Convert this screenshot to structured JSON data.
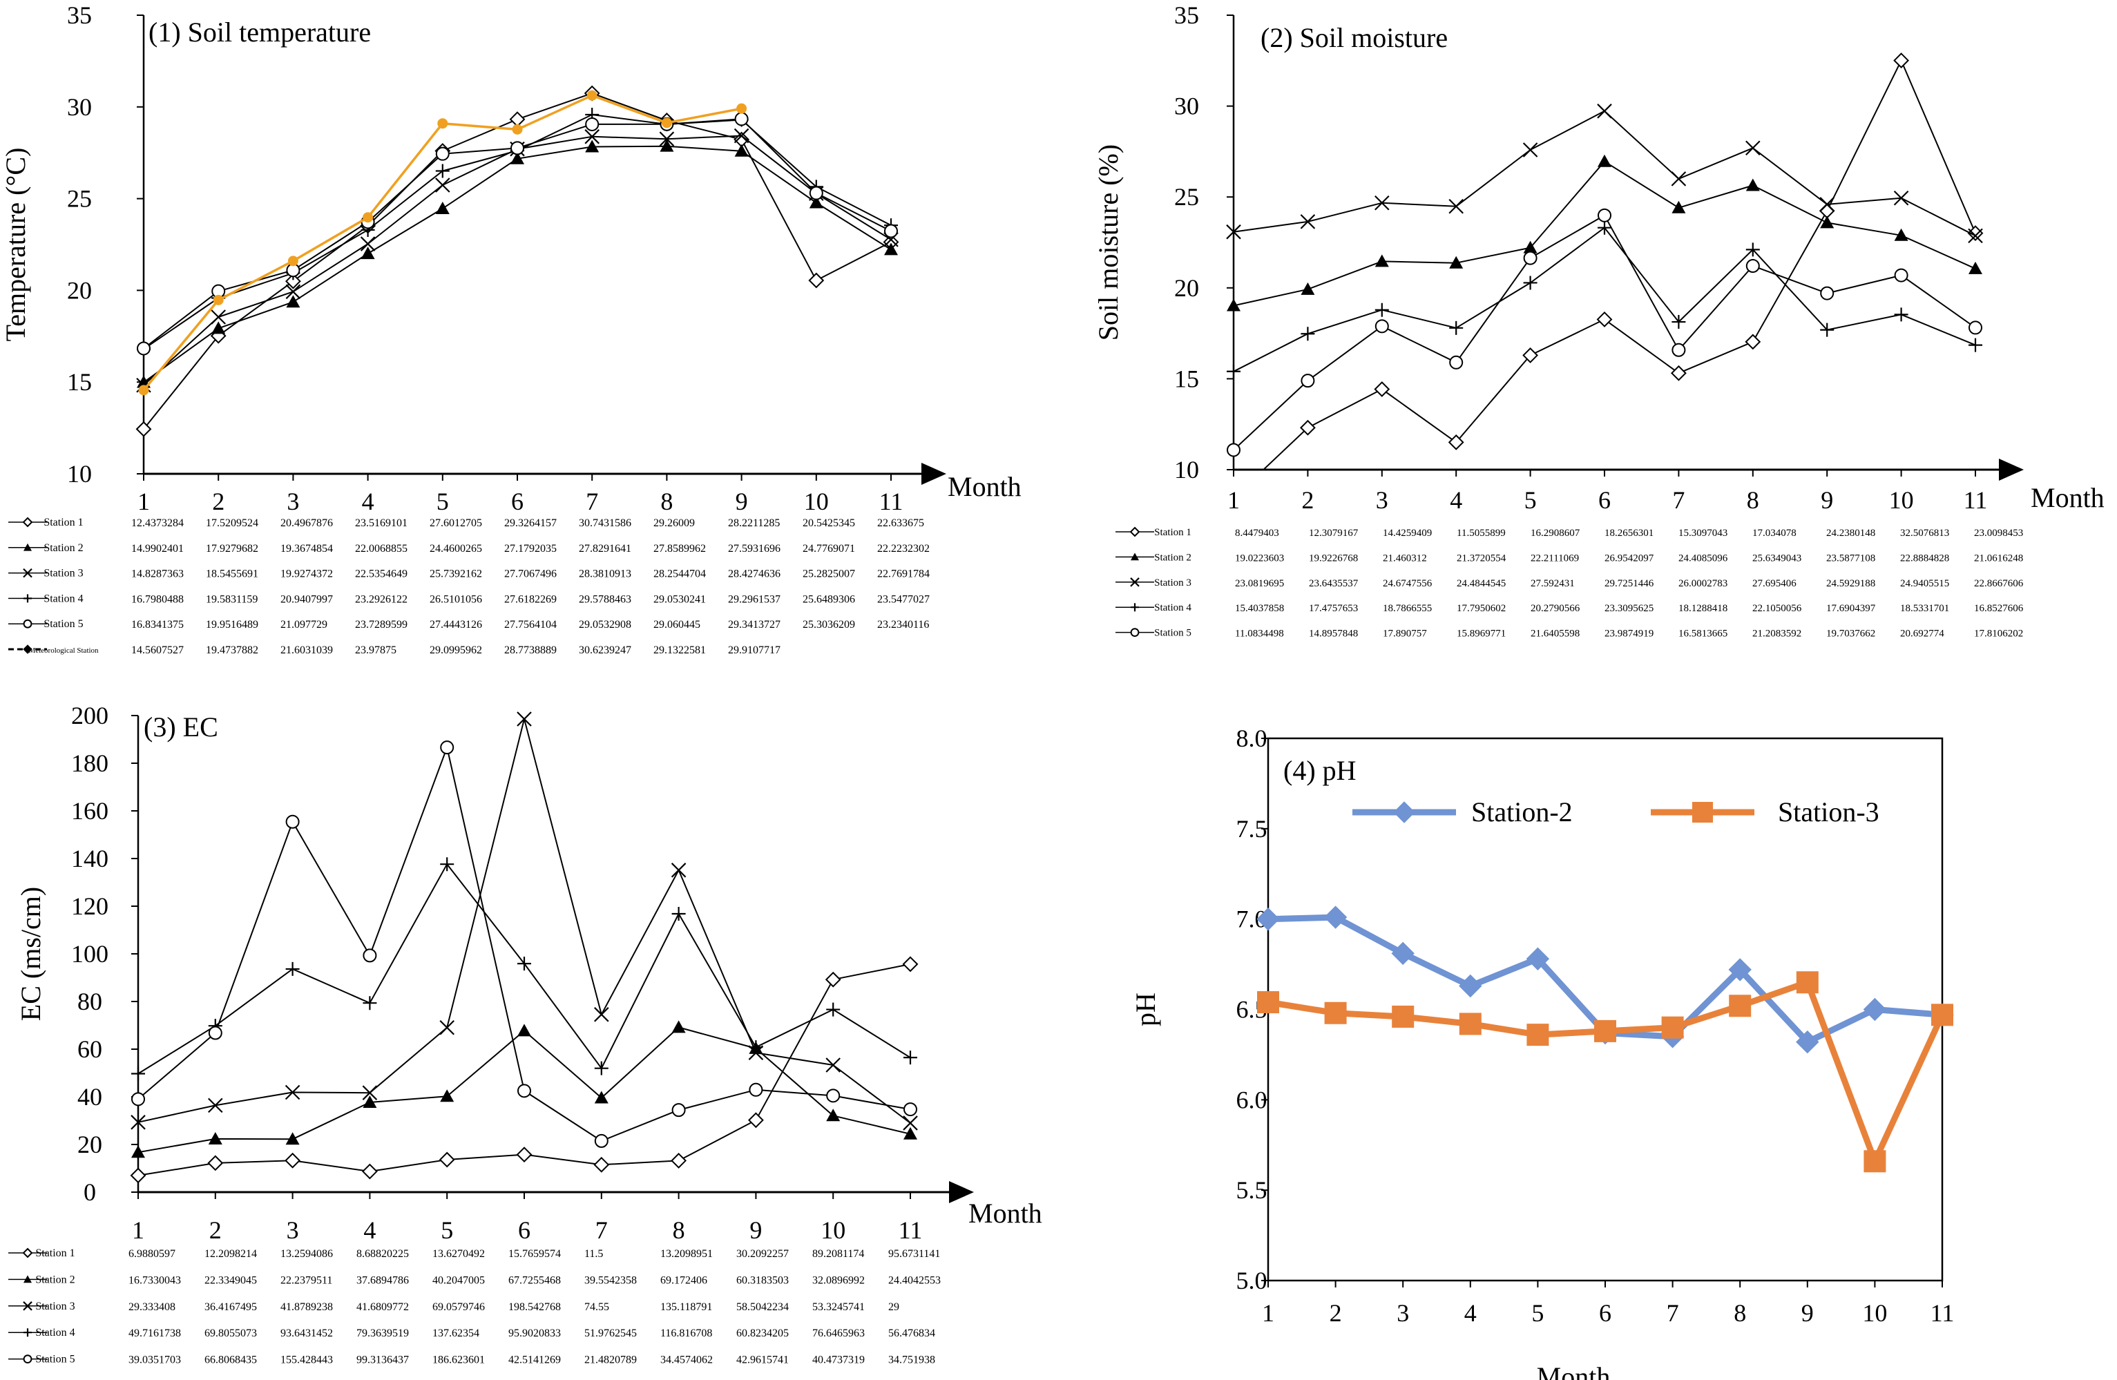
{
  "chart_data": [
    {
      "type": "line",
      "title": "(1) Soil temperature",
      "xlabel": "Month",
      "ylabel": "Temperature (°C)",
      "xlim": [
        1,
        11
      ],
      "ylim": [
        10,
        35
      ],
      "x": [
        1,
        2,
        3,
        4,
        5,
        6,
        7,
        8,
        9,
        10,
        11
      ],
      "x_ticks": [
        "1",
        "2",
        "3",
        "4",
        "5",
        "6",
        "7",
        "8",
        "9",
        "10",
        "11"
      ],
      "y_ticks": [
        "10",
        "15",
        "20",
        "25",
        "30",
        "35"
      ],
      "colors": {
        "stations": "#000000",
        "meteorological": "#f0a020"
      },
      "series": [
        {
          "name": "Station 1",
          "marker": "diamond-open",
          "values": [
            12.4373284,
            17.5209524,
            20.4967876,
            23.5169101,
            27.6012705,
            29.3264157,
            30.7431586,
            29.26009,
            28.2211285,
            20.5425345,
            22.633675
          ],
          "labels": [
            "12.4373284",
            "17.5209524",
            "20.4967876",
            "23.5169101",
            "27.6012705",
            "29.3264157",
            "30.7431586",
            "29.26009",
            "28.2211285",
            "20.5425345",
            "22.633675"
          ]
        },
        {
          "name": "Station 2",
          "marker": "triangle-filled",
          "values": [
            14.9902401,
            17.9279682,
            19.3674854,
            22.0068855,
            24.4600265,
            27.1792035,
            27.8291641,
            27.8589962,
            27.5931696,
            24.7769071,
            22.2232302
          ],
          "labels": [
            "14.9902401",
            "17.9279682",
            "19.3674854",
            "22.0068855",
            "24.4600265",
            "27.1792035",
            "27.8291641",
            "27.8589962",
            "27.5931696",
            "24.7769071",
            "22.2232302"
          ]
        },
        {
          "name": "Station 3",
          "marker": "x",
          "values": [
            14.8287363,
            18.5455691,
            19.9274372,
            22.5354649,
            25.7392162,
            27.7067496,
            28.3810913,
            28.2544704,
            28.4274636,
            25.2825007,
            22.7691784
          ],
          "labels": [
            "14.8287363",
            "18.5455691",
            "19.9274372",
            "22.5354649",
            "25.7392162",
            "27.7067496",
            "28.3810913",
            "28.2544704",
            "28.4274636",
            "25.2825007",
            "22.7691784"
          ]
        },
        {
          "name": "Station 4",
          "marker": "plus",
          "values": [
            16.7980488,
            19.5831159,
            20.9407997,
            23.2926122,
            26.5101056,
            27.6182269,
            29.5788463,
            29.0530241,
            29.2961537,
            25.6489306,
            23.5477027
          ],
          "labels": [
            "16.7980488",
            "19.5831159",
            "20.9407997",
            "23.2926122",
            "26.5101056",
            "27.6182269",
            "29.5788463",
            "29.0530241",
            "29.2961537",
            "25.6489306",
            "23.5477027"
          ]
        },
        {
          "name": "Station 5",
          "marker": "circle-open",
          "values": [
            16.8341375,
            19.9516489,
            21.097729,
            23.7289599,
            27.4443126,
            27.7564104,
            29.0532908,
            29.060445,
            29.3413727,
            25.3036209,
            23.2340116
          ],
          "labels": [
            "16.8341375",
            "19.9516489",
            "21.097729",
            "23.7289599",
            "27.4443126",
            "27.7564104",
            "29.0532908",
            "29.060445",
            "29.3413727",
            "25.3036209",
            "23.2340116"
          ]
        },
        {
          "name": "Meteorological Station",
          "marker": "circle-filled",
          "color": "#f0a020",
          "values": [
            14.5607527,
            19.4737882,
            21.6031039,
            23.97875,
            29.0995962,
            28.7738889,
            30.6239247,
            29.1322581,
            29.9107717,
            null,
            null
          ],
          "labels": [
            "14.5607527",
            "19.4737882",
            "21.6031039",
            "23.97875",
            "29.0995962",
            "28.7738889",
            "30.6239247",
            "29.1322581",
            "29.9107717",
            "",
            ""
          ]
        }
      ]
    },
    {
      "type": "line",
      "title": "(2) Soil moisture",
      "xlabel": "Month",
      "ylabel": "Soil moisture (%)",
      "xlim": [
        1,
        11
      ],
      "ylim": [
        10,
        35
      ],
      "x": [
        1,
        2,
        3,
        4,
        5,
        6,
        7,
        8,
        9,
        10,
        11
      ],
      "x_ticks": [
        "1",
        "2",
        "3",
        "4",
        "5",
        "6",
        "7",
        "8",
        "9",
        "10",
        "11"
      ],
      "y_ticks": [
        "10",
        "15",
        "20",
        "25",
        "30",
        "35"
      ],
      "series": [
        {
          "name": "Station 1",
          "marker": "diamond-open",
          "values": [
            8.4479403,
            12.3079167,
            14.4259409,
            11.5055899,
            16.2908607,
            18.2656301,
            15.3097043,
            17.034078,
            24.2380148,
            32.5076813,
            23.0098453
          ],
          "labels": [
            "8.4479403",
            "12.3079167",
            "14.4259409",
            "11.5055899",
            "16.2908607",
            "18.2656301",
            "15.3097043",
            "17.034078",
            "24.2380148",
            "32.5076813",
            "23.0098453"
          ]
        },
        {
          "name": "Station 2",
          "marker": "triangle-filled",
          "values": [
            19.0223603,
            19.9226768,
            21.460312,
            21.3720554,
            22.2111069,
            26.9542097,
            24.4085096,
            25.6349043,
            23.5877108,
            22.8884828,
            21.0616248
          ],
          "labels": [
            "19.0223603",
            "19.9226768",
            "21.460312",
            "21.3720554",
            "22.2111069",
            "26.9542097",
            "24.4085096",
            "25.6349043",
            "23.5877108",
            "22.8884828",
            "21.0616248"
          ]
        },
        {
          "name": "Station 3",
          "marker": "x",
          "values": [
            23.0819695,
            23.6435537,
            24.6747556,
            24.4844545,
            27.592431,
            29.7251446,
            26.0002783,
            27.695406,
            24.5929188,
            24.9405515,
            22.8667606
          ],
          "labels": [
            "23.0819695",
            "23.6435537",
            "24.6747556",
            "24.4844545",
            "27.592431",
            "29.7251446",
            "26.0002783",
            "27.695406",
            "24.5929188",
            "24.9405515",
            "22.8667606"
          ]
        },
        {
          "name": "Station 4",
          "marker": "plus",
          "values": [
            15.4037858,
            17.4757653,
            18.7866555,
            17.7950602,
            20.2790566,
            23.3095625,
            18.1288418,
            22.1050056,
            17.6904397,
            18.5331701,
            16.8527606
          ],
          "labels": [
            "15.4037858",
            "17.4757653",
            "18.7866555",
            "17.7950602",
            "20.2790566",
            "23.3095625",
            "18.1288418",
            "22.1050056",
            "17.6904397",
            "18.5331701",
            "16.8527606"
          ]
        },
        {
          "name": "Station 5",
          "marker": "circle-open",
          "values": [
            11.0834498,
            14.8957848,
            17.890757,
            15.8969771,
            21.6405598,
            23.9874919,
            16.5813665,
            21.2083592,
            19.7037662,
            20.692774,
            17.8106202
          ],
          "labels": [
            "11.0834498",
            "14.8957848",
            "17.890757",
            "15.8969771",
            "21.6405598",
            "23.9874919",
            "16.5813665",
            "21.2083592",
            "19.7037662",
            "20.692774",
            "17.8106202"
          ]
        }
      ]
    },
    {
      "type": "line",
      "title": "(3) EC",
      "xlabel": "Month",
      "ylabel": "EC (ms/cm)",
      "xlim": [
        1,
        11
      ],
      "ylim": [
        0,
        200
      ],
      "x": [
        1,
        2,
        3,
        4,
        5,
        6,
        7,
        8,
        9,
        10,
        11
      ],
      "x_ticks": [
        "1",
        "2",
        "3",
        "4",
        "5",
        "6",
        "7",
        "8",
        "9",
        "10",
        "11"
      ],
      "y_ticks": [
        "0",
        "20",
        "40",
        "60",
        "80",
        "100",
        "120",
        "140",
        "160",
        "180",
        "200"
      ],
      "series": [
        {
          "name": "Station 1",
          "marker": "diamond-open",
          "values": [
            6.9880597,
            12.2098214,
            13.2594086,
            8.68820225,
            13.6270492,
            15.7659574,
            11.5,
            13.2098951,
            30.2092257,
            89.2081174,
            95.6731141
          ],
          "labels": [
            "6.9880597",
            "12.2098214",
            "13.2594086",
            "8.68820225",
            "13.6270492",
            "15.7659574",
            "11.5",
            "13.2098951",
            "30.2092257",
            "89.2081174",
            "95.6731141"
          ]
        },
        {
          "name": "Station 2",
          "marker": "triangle-filled",
          "values": [
            16.7330043,
            22.3349045,
            22.2379511,
            37.6894786,
            40.2047005,
            67.7255468,
            39.5542358,
            69.172406,
            60.3183503,
            32.0896992,
            24.4042553
          ],
          "labels": [
            "16.7330043",
            "22.3349045",
            "22.2379511",
            "37.6894786",
            "40.2047005",
            "67.7255468",
            "39.5542358",
            "69.172406",
            "60.3183503",
            "32.0896992",
            "24.4042553"
          ]
        },
        {
          "name": "Station 3",
          "marker": "x",
          "values": [
            29.333408,
            36.4167495,
            41.8789238,
            41.6809772,
            69.0579746,
            198.542768,
            74.55,
            135.118791,
            58.5042234,
            53.3245741,
            29
          ],
          "labels": [
            "29.333408",
            "36.4167495",
            "41.8789238",
            "41.6809772",
            "69.0579746",
            "198.542768",
            "74.55",
            "135.118791",
            "58.5042234",
            "53.3245741",
            "29"
          ]
        },
        {
          "name": "Station 4",
          "marker": "plus",
          "values": [
            49.7161738,
            69.8055073,
            93.6431452,
            79.3639519,
            137.62354,
            95.9020833,
            51.9762545,
            116.816708,
            60.8234205,
            76.6465963,
            56.476834
          ],
          "labels": [
            "49.7161738",
            "69.8055073",
            "93.6431452",
            "79.3639519",
            "137.62354",
            "95.9020833",
            "51.9762545",
            "116.816708",
            "60.8234205",
            "76.6465963",
            "56.476834"
          ]
        },
        {
          "name": "Station 5",
          "marker": "circle-open",
          "values": [
            39.0351703,
            66.8068435,
            155.428443,
            99.3136437,
            186.623601,
            42.5141269,
            21.4820789,
            34.4574062,
            42.9615741,
            40.4737319,
            34.751938
          ],
          "labels": [
            "39.0351703",
            "66.8068435",
            "155.428443",
            "99.3136437",
            "186.623601",
            "42.5141269",
            "21.4820789",
            "34.4574062",
            "42.9615741",
            "40.4737319",
            "34.751938"
          ]
        }
      ]
    },
    {
      "type": "line",
      "title": "(4) pH",
      "xlabel": "Month",
      "ylabel": "pH",
      "xlim": [
        1,
        11
      ],
      "ylim": [
        5.0,
        8.0
      ],
      "x": [
        1,
        2,
        3,
        4,
        5,
        6,
        7,
        8,
        9,
        10,
        11
      ],
      "x_ticks": [
        "1",
        "2",
        "3",
        "4",
        "5",
        "6",
        "7",
        "8",
        "9",
        "10",
        "11"
      ],
      "y_ticks": [
        "5.0",
        "5.5",
        "6.0",
        "6.5",
        "7.0",
        "7.5",
        "8.0"
      ],
      "legend_position": "top",
      "series": [
        {
          "name": "Station-2",
          "marker": "diamond-filled",
          "color": "#6f93d3",
          "values": [
            7.0,
            7.01,
            6.81,
            6.63,
            6.78,
            6.37,
            6.35,
            6.72,
            6.32,
            6.5,
            6.47
          ]
        },
        {
          "name": "Station-3",
          "marker": "square-filled",
          "color": "#e8823a",
          "values": [
            6.54,
            6.48,
            6.46,
            6.42,
            6.36,
            6.38,
            6.4,
            6.52,
            6.65,
            5.66,
            6.47
          ]
        }
      ]
    }
  ]
}
